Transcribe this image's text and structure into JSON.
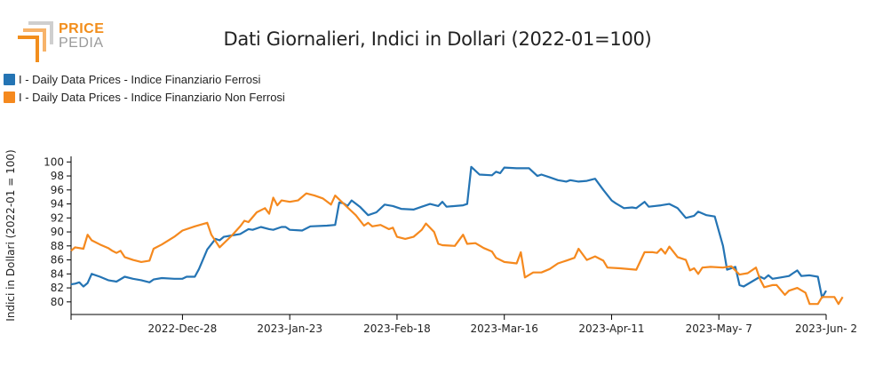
{
  "logo": {
    "line1": "PRICE",
    "line2": "PEDIA"
  },
  "colors": {
    "ferrosi": "#2474b4",
    "non_ferrosi": "#f5891e",
    "logo_orange": "#f28e1c",
    "logo_gray": "#9a9a9a"
  },
  "chart_data": {
    "type": "line",
    "title": "Dati Giornalieri, Indici in Dollari (2022-01=100)",
    "ylabel": "Indici in Dollari (2022-01 = 100)",
    "xlabel": "",
    "ylim": [
      78.2,
      100.8
    ],
    "yticks": [
      80,
      82,
      84,
      86,
      88,
      90,
      92,
      94,
      96,
      98,
      100
    ],
    "xlim": [
      "2022-12-01",
      "2023-06-02"
    ],
    "xticks": [
      {
        "date": "2022-12-28",
        "label": "2022-Dec-28"
      },
      {
        "date": "2023-01-23",
        "label": "2023-Jan-23"
      },
      {
        "date": "2023-02-18",
        "label": "2023-Feb-18"
      },
      {
        "date": "2023-03-16",
        "label": "2023-Mar-16"
      },
      {
        "date": "2023-04-11",
        "label": "2023-Apr-11"
      },
      {
        "date": "2023-05-07",
        "label": "2023-May- 7"
      },
      {
        "date": "2023-06-02",
        "label": "2023-Jun- 2"
      }
    ],
    "legend_position": "top-left",
    "grid": false,
    "series": [
      {
        "name": "I - Daily Data Prices - Indice Finanziario Ferrosi",
        "color": "#2474b4",
        "points": [
          [
            "2022-12-01",
            82.5
          ],
          [
            "2022-12-02",
            82.6
          ],
          [
            "2022-12-03",
            82.8
          ],
          [
            "2022-12-04",
            82.2
          ],
          [
            "2022-12-05",
            82.7
          ],
          [
            "2022-12-06",
            84.0
          ],
          [
            "2022-12-08",
            83.6
          ],
          [
            "2022-12-10",
            83.1
          ],
          [
            "2022-12-12",
            82.9
          ],
          [
            "2022-12-14",
            83.6
          ],
          [
            "2022-12-16",
            83.3
          ],
          [
            "2022-12-18",
            83.1
          ],
          [
            "2022-12-20",
            82.8
          ],
          [
            "2022-12-21",
            83.2
          ],
          [
            "2022-12-23",
            83.4
          ],
          [
            "2022-12-26",
            83.3
          ],
          [
            "2022-12-28",
            83.3
          ],
          [
            "2022-12-29",
            83.6
          ],
          [
            "2022-12-31",
            83.6
          ],
          [
            "2023-01-01",
            84.7
          ],
          [
            "2023-01-03",
            87.5
          ],
          [
            "2023-01-05",
            89.0
          ],
          [
            "2023-01-06",
            88.8
          ],
          [
            "2023-01-07",
            89.3
          ],
          [
            "2023-01-09",
            89.5
          ],
          [
            "2023-01-11",
            89.7
          ],
          [
            "2023-01-13",
            90.4
          ],
          [
            "2023-01-14",
            90.3
          ],
          [
            "2023-01-16",
            90.7
          ],
          [
            "2023-01-18",
            90.4
          ],
          [
            "2023-01-19",
            90.3
          ],
          [
            "2023-01-21",
            90.7
          ],
          [
            "2023-01-22",
            90.7
          ],
          [
            "2023-01-23",
            90.3
          ],
          [
            "2023-01-26",
            90.2
          ],
          [
            "2023-01-28",
            90.8
          ],
          [
            "2023-02-01",
            90.9
          ],
          [
            "2023-02-03",
            91.0
          ],
          [
            "2023-02-04",
            94.2
          ],
          [
            "2023-02-05",
            94.1
          ],
          [
            "2023-02-06",
            93.7
          ],
          [
            "2023-02-07",
            94.5
          ],
          [
            "2023-02-09",
            93.6
          ],
          [
            "2023-02-11",
            92.4
          ],
          [
            "2023-02-13",
            92.8
          ],
          [
            "2023-02-15",
            93.9
          ],
          [
            "2023-02-17",
            93.7
          ],
          [
            "2023-02-19",
            93.3
          ],
          [
            "2023-02-22",
            93.2
          ],
          [
            "2023-02-24",
            93.6
          ],
          [
            "2023-02-26",
            94.0
          ],
          [
            "2023-02-28",
            93.7
          ],
          [
            "2023-03-01",
            94.3
          ],
          [
            "2023-03-02",
            93.6
          ],
          [
            "2023-03-06",
            93.8
          ],
          [
            "2023-03-07",
            94.0
          ],
          [
            "2023-03-08",
            99.3
          ],
          [
            "2023-03-10",
            98.2
          ],
          [
            "2023-03-13",
            98.1
          ],
          [
            "2023-03-14",
            98.6
          ],
          [
            "2023-03-15",
            98.4
          ],
          [
            "2023-03-16",
            99.2
          ],
          [
            "2023-03-19",
            99.1
          ],
          [
            "2023-03-22",
            99.1
          ],
          [
            "2023-03-24",
            98.0
          ],
          [
            "2023-03-25",
            98.2
          ],
          [
            "2023-03-27",
            97.8
          ],
          [
            "2023-03-29",
            97.4
          ],
          [
            "2023-03-31",
            97.2
          ],
          [
            "2023-04-01",
            97.4
          ],
          [
            "2023-04-03",
            97.2
          ],
          [
            "2023-04-05",
            97.3
          ],
          [
            "2023-04-07",
            97.6
          ],
          [
            "2023-04-09",
            96.0
          ],
          [
            "2023-04-11",
            94.5
          ],
          [
            "2023-04-12",
            94.1
          ],
          [
            "2023-04-14",
            93.4
          ],
          [
            "2023-04-16",
            93.5
          ],
          [
            "2023-04-17",
            93.4
          ],
          [
            "2023-04-19",
            94.3
          ],
          [
            "2023-04-20",
            93.6
          ],
          [
            "2023-04-23",
            93.8
          ],
          [
            "2023-04-25",
            94.0
          ],
          [
            "2023-04-27",
            93.4
          ],
          [
            "2023-04-29",
            92.0
          ],
          [
            "2023-05-01",
            92.3
          ],
          [
            "2023-05-02",
            92.9
          ],
          [
            "2023-05-04",
            92.4
          ],
          [
            "2023-05-06",
            92.2
          ],
          [
            "2023-05-08",
            88.0
          ],
          [
            "2023-05-09",
            84.6
          ],
          [
            "2023-05-11",
            85.0
          ],
          [
            "2023-05-12",
            82.4
          ],
          [
            "2023-05-13",
            82.2
          ],
          [
            "2023-05-15",
            82.9
          ],
          [
            "2023-05-17",
            83.6
          ],
          [
            "2023-05-18",
            83.3
          ],
          [
            "2023-05-19",
            83.8
          ],
          [
            "2023-05-20",
            83.3
          ],
          [
            "2023-05-22",
            83.5
          ],
          [
            "2023-05-24",
            83.7
          ],
          [
            "2023-05-25",
            84.1
          ],
          [
            "2023-05-26",
            84.5
          ],
          [
            "2023-05-27",
            83.7
          ],
          [
            "2023-05-29",
            83.8
          ],
          [
            "2023-05-31",
            83.6
          ],
          [
            "2023-06-01",
            80.6
          ],
          [
            "2023-06-02",
            81.6
          ]
        ]
      },
      {
        "name": "I - Daily Data Prices - Indice Finanziario Non Ferrosi",
        "color": "#f5891e",
        "points": [
          [
            "2022-12-01",
            87.3
          ],
          [
            "2022-12-02",
            87.8
          ],
          [
            "2022-12-04",
            87.6
          ],
          [
            "2022-12-05",
            89.6
          ],
          [
            "2022-12-06",
            88.8
          ],
          [
            "2022-12-08",
            88.2
          ],
          [
            "2022-12-10",
            87.7
          ],
          [
            "2022-12-11",
            87.3
          ],
          [
            "2022-12-12",
            87.0
          ],
          [
            "2022-12-13",
            87.3
          ],
          [
            "2022-12-14",
            86.4
          ],
          [
            "2022-12-16",
            86.0
          ],
          [
            "2022-12-18",
            85.7
          ],
          [
            "2022-12-20",
            85.9
          ],
          [
            "2022-12-21",
            87.6
          ],
          [
            "2022-12-23",
            88.2
          ],
          [
            "2022-12-26",
            89.3
          ],
          [
            "2022-12-28",
            90.2
          ],
          [
            "2022-12-31",
            90.8
          ],
          [
            "2023-01-03",
            91.3
          ],
          [
            "2023-01-04",
            89.6
          ],
          [
            "2023-01-06",
            87.8
          ],
          [
            "2023-01-09",
            89.5
          ],
          [
            "2023-01-11",
            90.8
          ],
          [
            "2023-01-12",
            91.6
          ],
          [
            "2023-01-13",
            91.4
          ],
          [
            "2023-01-15",
            92.8
          ],
          [
            "2023-01-17",
            93.4
          ],
          [
            "2023-01-18",
            92.6
          ],
          [
            "2023-01-19",
            94.9
          ],
          [
            "2023-01-20",
            93.8
          ],
          [
            "2023-01-21",
            94.5
          ],
          [
            "2023-01-23",
            94.3
          ],
          [
            "2023-01-25",
            94.5
          ],
          [
            "2023-01-27",
            95.5
          ],
          [
            "2023-01-29",
            95.2
          ],
          [
            "2023-01-31",
            94.8
          ],
          [
            "2023-02-02",
            93.9
          ],
          [
            "2023-02-03",
            95.2
          ],
          [
            "2023-02-06",
            93.5
          ],
          [
            "2023-02-08",
            92.4
          ],
          [
            "2023-02-10",
            90.9
          ],
          [
            "2023-02-11",
            91.3
          ],
          [
            "2023-02-12",
            90.8
          ],
          [
            "2023-02-14",
            91.0
          ],
          [
            "2023-02-16",
            90.4
          ],
          [
            "2023-02-17",
            90.6
          ],
          [
            "2023-02-18",
            89.3
          ],
          [
            "2023-02-20",
            89.0
          ],
          [
            "2023-02-22",
            89.3
          ],
          [
            "2023-02-24",
            90.3
          ],
          [
            "2023-02-25",
            91.2
          ],
          [
            "2023-02-27",
            90.0
          ],
          [
            "2023-02-28",
            88.3
          ],
          [
            "2023-03-01",
            88.1
          ],
          [
            "2023-03-04",
            88.0
          ],
          [
            "2023-03-06",
            89.6
          ],
          [
            "2023-03-07",
            88.3
          ],
          [
            "2023-03-09",
            88.4
          ],
          [
            "2023-03-11",
            87.7
          ],
          [
            "2023-03-13",
            87.2
          ],
          [
            "2023-03-14",
            86.3
          ],
          [
            "2023-03-16",
            85.7
          ],
          [
            "2023-03-19",
            85.5
          ],
          [
            "2023-03-20",
            87.1
          ],
          [
            "2023-03-21",
            83.5
          ],
          [
            "2023-03-23",
            84.2
          ],
          [
            "2023-03-25",
            84.2
          ],
          [
            "2023-03-27",
            84.7
          ],
          [
            "2023-03-29",
            85.5
          ],
          [
            "2023-03-31",
            85.9
          ],
          [
            "2023-04-02",
            86.3
          ],
          [
            "2023-04-03",
            87.6
          ],
          [
            "2023-04-05",
            86.0
          ],
          [
            "2023-04-07",
            86.5
          ],
          [
            "2023-04-08",
            86.2
          ],
          [
            "2023-04-09",
            85.9
          ],
          [
            "2023-04-10",
            84.9
          ],
          [
            "2023-04-13",
            84.8
          ],
          [
            "2023-04-17",
            84.6
          ],
          [
            "2023-04-19",
            87.1
          ],
          [
            "2023-04-21",
            87.1
          ],
          [
            "2023-04-22",
            87.0
          ],
          [
            "2023-04-23",
            87.6
          ],
          [
            "2023-04-24",
            86.9
          ],
          [
            "2023-04-25",
            87.9
          ],
          [
            "2023-04-27",
            86.4
          ],
          [
            "2023-04-29",
            86.0
          ],
          [
            "2023-04-30",
            84.5
          ],
          [
            "2023-05-01",
            84.8
          ],
          [
            "2023-05-02",
            84.0
          ],
          [
            "2023-05-03",
            84.9
          ],
          [
            "2023-05-05",
            85.0
          ],
          [
            "2023-05-08",
            84.9
          ],
          [
            "2023-05-10",
            85.1
          ],
          [
            "2023-05-12",
            83.9
          ],
          [
            "2023-05-14",
            84.1
          ],
          [
            "2023-05-16",
            84.9
          ],
          [
            "2023-05-17",
            83.2
          ],
          [
            "2023-05-18",
            82.1
          ],
          [
            "2023-05-20",
            82.4
          ],
          [
            "2023-05-21",
            82.4
          ],
          [
            "2023-05-23",
            81.0
          ],
          [
            "2023-05-24",
            81.6
          ],
          [
            "2023-05-26",
            82.0
          ],
          [
            "2023-05-28",
            81.3
          ],
          [
            "2023-05-29",
            79.7
          ],
          [
            "2023-05-31",
            79.7
          ],
          [
            "2023-06-01",
            80.7
          ],
          [
            "2023-06-03",
            80.7
          ],
          [
            "2023-06-04",
            80.7
          ],
          [
            "2023-06-05",
            79.7
          ],
          [
            "2023-06-06",
            80.7
          ]
        ]
      }
    ]
  }
}
